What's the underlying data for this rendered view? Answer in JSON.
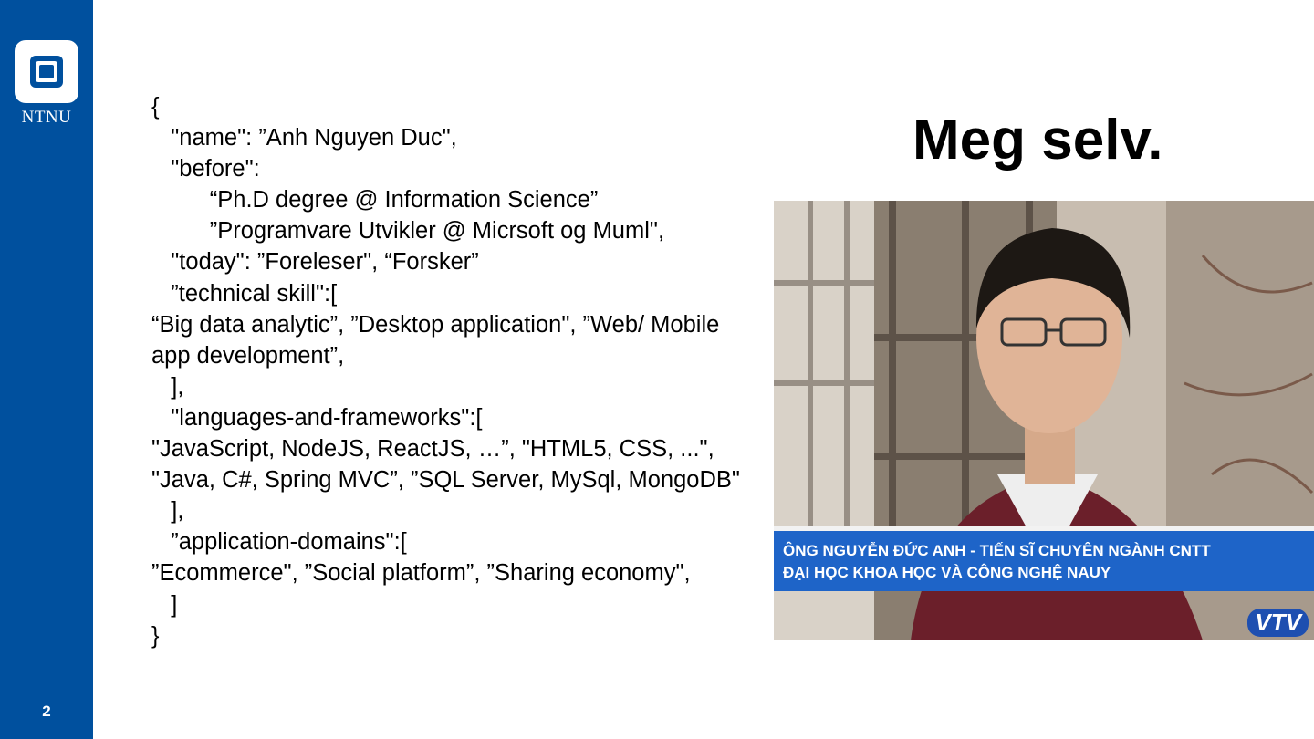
{
  "sidebar": {
    "logo_text": "NTNU",
    "page_number": "2",
    "color": "#00509e"
  },
  "slide": {
    "title": "Meg selv.",
    "code_lines": [
      "{",
      "   \"name\": ”Anh Nguyen Duc\",",
      "   \"before\":",
      "         “Ph.D degree @ Information Science”",
      "         ”Programvare Utvikler @ Micrsoft og Muml\",",
      "   \"today\": ”Foreleser\", “Forsker”",
      "   ”technical skill\":[",
      "      “Big data analytic”, ”Desktop application\", ”Web/ Mobile app development”,",
      "   ],",
      "   \"languages-and-frameworks\":[",
      "      \"JavaScript, NodeJS, ReactJS, …”, \"HTML5, CSS, ...\",  \"Java, C#, Spring MVC”,  ”SQL Server, MySql, MongoDB\"",
      "   ],",
      "   ”application-domains\":[",
      "      ”Ecommerce\", ”Social platform”, ”Sharing economy\",",
      "   ]",
      "}"
    ]
  },
  "photo": {
    "caption_line1": "ÔNG NGUYỄN ĐỨC ANH - TIẾN SĨ CHUYÊN NGÀNH CNTT",
    "caption_line2": "ĐẠI HỌC KHOA HỌC VÀ CÔNG NGHỆ NAUY",
    "channel_logo": "VTV"
  }
}
